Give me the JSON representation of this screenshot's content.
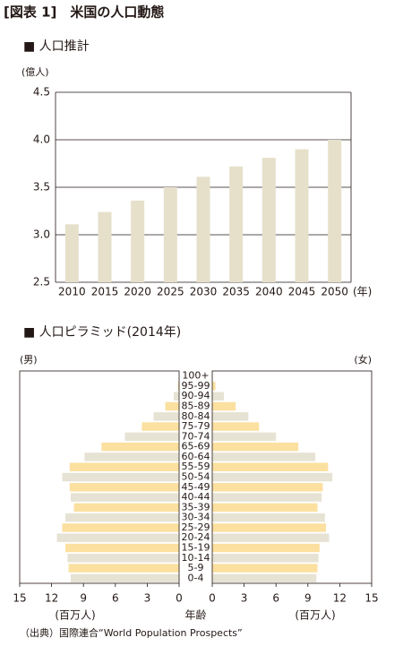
{
  "title": "[図表 1]　米国の人口動態",
  "source": "（出典）国際連合“World Population Prospects”",
  "chart_data": [
    {
      "type": "bar",
      "title": "■ 人口推計",
      "y_label": "(億人)",
      "x_label": "(年)",
      "categories": [
        "2010",
        "2015",
        "2020",
        "2025",
        "2030",
        "2035",
        "2040",
        "2045",
        "2050"
      ],
      "values": [
        3.11,
        3.24,
        3.36,
        3.5,
        3.61,
        3.72,
        3.81,
        3.9,
        4.0
      ],
      "color": "#e6e0cb",
      "ylim": [
        2.5,
        4.5
      ],
      "yticks": [
        2.5,
        {
          "value": 3,
          "label": "3.0"
        },
        3.5,
        {
          "value": 4,
          "label": "4.0"
        },
        4.5
      ],
      "grid": true
    },
    {
      "type": "pyramid",
      "title": "■ 人口ピラミッド(2014年)",
      "x_label": "(百万人)",
      "center_label": "年齢",
      "categories": [
        "0-4",
        "5-9",
        "10-14",
        "15-19",
        "20-24",
        "25-29",
        "30-34",
        "35-39",
        "40-44",
        "45-49",
        "50-54",
        "55-59",
        "60-64",
        "65-69",
        "70-74",
        "75-79",
        "80-84",
        "85-89",
        "90-94",
        "95-99",
        "100+"
      ],
      "series": [
        {
          "name": "(男)",
          "values": [
            10.2,
            10.4,
            10.5,
            10.7,
            11.5,
            11.0,
            10.7,
            9.9,
            10.2,
            10.3,
            11.0,
            10.3,
            8.9,
            7.3,
            5.1,
            3.5,
            2.4,
            1.3,
            0.5,
            0.1,
            0.0
          ]
        },
        {
          "name": "(女)",
          "values": [
            9.8,
            9.9,
            10.0,
            10.1,
            11.0,
            10.7,
            10.6,
            9.9,
            10.3,
            10.4,
            11.3,
            10.9,
            9.7,
            8.1,
            6.0,
            4.4,
            3.4,
            2.2,
            1.1,
            0.3,
            0.05
          ]
        }
      ],
      "colors": [
        "#e7e3d4",
        "#fbe0a0"
      ],
      "xlim": [
        0,
        15
      ],
      "xticks": [
        0,
        3,
        6,
        9,
        12,
        15
      ]
    }
  ]
}
